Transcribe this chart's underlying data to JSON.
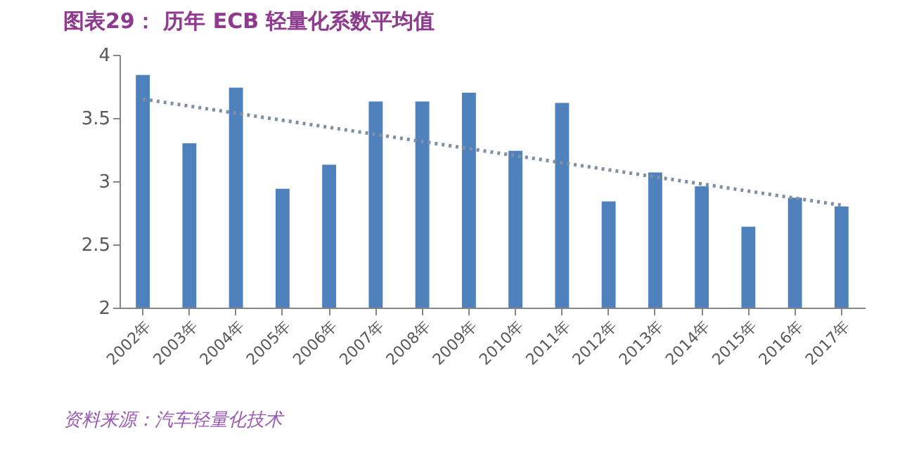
{
  "chart_data": {
    "type": "bar",
    "title": "图表29：  历年 ECB 轻量化系数平均值",
    "categories": [
      "2002年",
      "2003年",
      "2004年",
      "2005年",
      "2006年",
      "2007年",
      "2008年",
      "2009年",
      "2010年",
      "2011年",
      "2012年",
      "2013年",
      "2014年",
      "2015年",
      "2016年",
      "2017年"
    ],
    "series": [
      {
        "type": "bar",
        "color": "#4f81bd",
        "values": [
          3.84,
          3.3,
          3.74,
          2.94,
          3.13,
          3.63,
          3.63,
          3.7,
          3.24,
          3.62,
          2.84,
          3.07,
          2.96,
          2.64,
          2.87,
          2.8
        ]
      },
      {
        "type": "line",
        "color": "#7f8fa6",
        "line_style": "dotted",
        "x": [
          "2002年",
          "2017年"
        ],
        "values": [
          3.65,
          2.81
        ]
      }
    ],
    "ylim": [
      2,
      4
    ],
    "yticks": [
      2,
      2.5,
      3,
      3.5,
      4
    ],
    "grid": false,
    "annotations": [
      "资料来源：汽车轻量化技术"
    ]
  }
}
